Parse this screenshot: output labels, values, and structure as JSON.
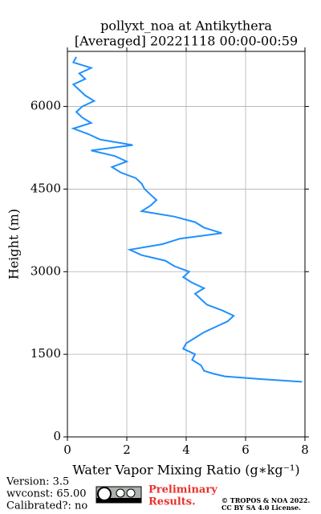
{
  "chart_data": {
    "type": "line",
    "title": "pollyxt_noa at Antikythera",
    "subtitle": "[Averaged] 20221118 00:00-00:59",
    "xlabel": "Water Vapor Mixing Ratio (g∗kg⁻¹)",
    "ylabel": "Height (m)",
    "xlim": [
      0,
      8
    ],
    "xticks": [
      0,
      2,
      4,
      6,
      8
    ],
    "ylim": [
      0,
      7000
    ],
    "yticks": [
      0,
      1500,
      3000,
      4500,
      6000
    ],
    "grid": true,
    "color": "#1e90ff",
    "heights": [
      1000,
      1050,
      1100,
      1150,
      1200,
      1300,
      1400,
      1500,
      1600,
      1700,
      1800,
      1900,
      2000,
      2100,
      2200,
      2300,
      2400,
      2500,
      2600,
      2700,
      2800,
      2900,
      3000,
      3100,
      3200,
      3300,
      3400,
      3500,
      3600,
      3700,
      3800,
      3900,
      4000,
      4100,
      4200,
      4300,
      4400,
      4500,
      4600,
      4700,
      4800,
      4900,
      5000,
      5100,
      5200,
      5300,
      5400,
      5500,
      5600,
      5700,
      5800,
      5900,
      6000,
      6100,
      6200,
      6300,
      6400,
      6500,
      6600,
      6700,
      6800,
      6900
    ],
    "values": [
      7.9,
      6.5,
      5.3,
      4.9,
      4.6,
      4.5,
      4.2,
      4.3,
      3.9,
      4.0,
      4.3,
      4.6,
      5.0,
      5.4,
      5.6,
      5.2,
      4.7,
      4.5,
      4.3,
      4.6,
      4.2,
      3.9,
      4.1,
      3.6,
      3.3,
      2.5,
      2.1,
      3.2,
      3.8,
      5.2,
      4.6,
      4.3,
      3.6,
      2.5,
      2.8,
      3.0,
      2.8,
      2.6,
      2.5,
      2.3,
      1.8,
      1.5,
      2.0,
      1.6,
      0.8,
      2.2,
      1.1,
      0.7,
      0.2,
      0.8,
      0.5,
      0.3,
      0.5,
      0.9,
      0.6,
      0.4,
      0.2,
      0.6,
      0.4,
      0.8,
      0.2,
      0.3
    ],
    "footer": {
      "version": "Version: 3.5",
      "wvconst": "wvconst:  65.00",
      "calibrated": "Calibrated?: no",
      "preliminary": "Preliminary",
      "results": "Results.",
      "copyright": "© TROPOS & NOA 2022.",
      "license": "CC BY SA 4.0 License."
    }
  }
}
